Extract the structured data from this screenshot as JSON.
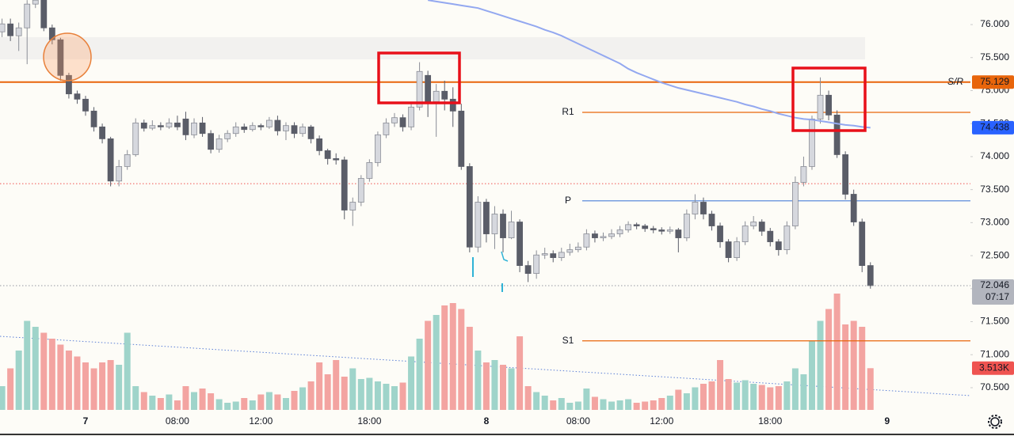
{
  "chart_data": {
    "type": "candlestick",
    "categories": [
      null,
      null,
      null,
      null,
      null,
      null,
      null,
      null,
      null,
      null,
      "7",
      null,
      null,
      null,
      null,
      null,
      null,
      null,
      null,
      null,
      null,
      "08:00",
      null,
      null,
      null,
      null,
      null,
      null,
      null,
      null,
      null,
      "12:00",
      null,
      null,
      null,
      null,
      null,
      null,
      null,
      null,
      null,
      null,
      null,
      null,
      "18:00",
      null,
      null,
      null,
      null,
      null,
      null,
      null,
      null,
      null,
      null,
      null,
      null,
      null,
      "8",
      null,
      null,
      null,
      null,
      null,
      null,
      null,
      null,
      null,
      null,
      "08:00",
      null,
      null,
      null,
      null,
      null,
      null,
      null,
      null,
      null,
      "12:00",
      null,
      null,
      null,
      null,
      null,
      null,
      null,
      null,
      null,
      null,
      null,
      null,
      "18:00",
      null,
      null,
      null,
      null,
      null,
      null,
      null,
      null,
      null,
      null,
      null,
      null,
      null,
      "9"
    ],
    "candles": [
      [
        75.89,
        76.09,
        75.81,
        76.01
      ],
      [
        76.01,
        76.09,
        75.75,
        75.83
      ],
      [
        75.83,
        76.03,
        75.6,
        75.95
      ],
      [
        75.95,
        76.37,
        75.4,
        76.31
      ],
      [
        76.31,
        76.37,
        76.25,
        76.37
      ],
      [
        76.37,
        76.37,
        75.9,
        75.95
      ],
      [
        75.95,
        76.0,
        75.7,
        75.77
      ],
      [
        75.77,
        75.8,
        75.15,
        75.23
      ],
      [
        75.23,
        75.27,
        74.88,
        74.95
      ],
      [
        74.95,
        75.0,
        74.8,
        74.87
      ],
      [
        74.87,
        74.92,
        74.62,
        74.69
      ],
      [
        74.69,
        74.75,
        74.38,
        74.45
      ],
      [
        74.45,
        74.5,
        74.2,
        74.27
      ],
      [
        74.27,
        74.3,
        73.55,
        73.63
      ],
      [
        73.63,
        73.95,
        73.55,
        73.85
      ],
      [
        73.85,
        74.1,
        73.8,
        74.03
      ],
      [
        74.03,
        74.58,
        74.0,
        74.51
      ],
      [
        74.51,
        74.56,
        74.38,
        74.43
      ],
      [
        74.43,
        74.55,
        74.4,
        74.47
      ],
      [
        74.47,
        74.52,
        74.4,
        74.45
      ],
      [
        74.45,
        74.58,
        74.42,
        74.51
      ],
      [
        74.51,
        74.62,
        74.4,
        74.45
      ],
      [
        74.57,
        74.68,
        74.25,
        74.33
      ],
      [
        74.33,
        74.58,
        74.28,
        74.51
      ],
      [
        74.51,
        74.6,
        74.3,
        74.35
      ],
      [
        74.35,
        74.4,
        74.05,
        74.11
      ],
      [
        74.11,
        74.33,
        74.06,
        74.27
      ],
      [
        74.27,
        74.4,
        74.22,
        74.35
      ],
      [
        74.35,
        74.52,
        74.3,
        74.45
      ],
      [
        74.45,
        74.5,
        74.36,
        74.41
      ],
      [
        74.41,
        74.52,
        74.38,
        74.47
      ],
      [
        74.47,
        74.5,
        74.4,
        74.45
      ],
      [
        74.45,
        74.6,
        74.42,
        74.55
      ],
      [
        74.55,
        74.62,
        74.32,
        74.39
      ],
      [
        74.39,
        74.52,
        74.25,
        74.47
      ],
      [
        74.47,
        74.52,
        74.28,
        74.35
      ],
      [
        74.35,
        74.5,
        74.3,
        74.45
      ],
      [
        74.45,
        74.48,
        74.2,
        74.27
      ],
      [
        74.27,
        74.32,
        74.02,
        74.09
      ],
      [
        74.09,
        74.12,
        73.88,
        73.97
      ],
      [
        73.97,
        74.05,
        73.88,
        73.95
      ],
      [
        73.95,
        74.0,
        73.05,
        73.19
      ],
      [
        73.19,
        73.38,
        72.95,
        73.31
      ],
      [
        73.31,
        73.72,
        73.25,
        73.67
      ],
      [
        73.67,
        73.96,
        73.62,
        73.91
      ],
      [
        73.91,
        74.38,
        73.85,
        74.33
      ],
      [
        74.33,
        74.58,
        74.28,
        74.51
      ],
      [
        74.51,
        74.66,
        74.45,
        74.59
      ],
      [
        74.59,
        74.64,
        74.38,
        74.45
      ],
      [
        74.45,
        74.8,
        74.4,
        74.75
      ],
      [
        74.75,
        75.43,
        74.7,
        75.29
      ],
      [
        75.23,
        75.3,
        74.6,
        74.83
      ],
      [
        74.83,
        75.1,
        74.3,
        74.99
      ],
      [
        74.99,
        75.15,
        74.7,
        74.87
      ],
      [
        74.87,
        75.05,
        74.45,
        74.69
      ],
      [
        74.69,
        74.8,
        73.8,
        73.85
      ],
      [
        73.85,
        73.9,
        72.55,
        72.63
      ],
      [
        72.63,
        73.4,
        72.55,
        73.31
      ],
      [
        73.31,
        73.36,
        72.7,
        72.83
      ],
      [
        72.83,
        73.25,
        72.6,
        73.13
      ],
      [
        73.13,
        73.2,
        72.55,
        72.77
      ],
      [
        72.77,
        73.18,
        72.75,
        73.01
      ],
      [
        73.01,
        73.05,
        72.25,
        72.35
      ],
      [
        72.35,
        72.42,
        72.1,
        72.23
      ],
      [
        72.23,
        72.58,
        72.15,
        72.51
      ],
      [
        72.51,
        72.62,
        72.45,
        72.53
      ],
      [
        72.53,
        72.58,
        72.4,
        72.47
      ],
      [
        72.47,
        72.62,
        72.42,
        72.55
      ],
      [
        72.55,
        72.68,
        72.5,
        72.59
      ],
      [
        72.59,
        72.7,
        72.55,
        72.63
      ],
      [
        72.63,
        72.9,
        72.58,
        72.83
      ],
      [
        72.83,
        72.88,
        72.7,
        72.77
      ],
      [
        72.77,
        72.85,
        72.72,
        72.79
      ],
      [
        72.79,
        72.9,
        72.75,
        72.83
      ],
      [
        72.83,
        72.95,
        72.78,
        72.89
      ],
      [
        72.89,
        73.02,
        72.85,
        72.97
      ],
      [
        72.97,
        73.0,
        72.9,
        72.95
      ],
      [
        72.95,
        72.98,
        72.86,
        72.91
      ],
      [
        72.91,
        72.95,
        72.84,
        72.89
      ],
      [
        72.89,
        72.93,
        72.82,
        72.87
      ],
      [
        72.87,
        72.94,
        72.83,
        72.89
      ],
      [
        72.89,
        72.92,
        72.55,
        72.77
      ],
      [
        72.77,
        73.2,
        72.72,
        73.13
      ],
      [
        73.13,
        73.43,
        73.05,
        73.31
      ],
      [
        73.31,
        73.38,
        73.05,
        73.13
      ],
      [
        73.13,
        73.18,
        72.88,
        72.95
      ],
      [
        72.95,
        73.0,
        72.62,
        72.71
      ],
      [
        72.71,
        72.75,
        72.4,
        72.47
      ],
      [
        72.47,
        72.78,
        72.42,
        72.71
      ],
      [
        72.71,
        73.02,
        72.66,
        72.95
      ],
      [
        72.95,
        73.1,
        72.9,
        73.01
      ],
      [
        73.01,
        73.05,
        72.8,
        72.87
      ],
      [
        72.87,
        72.92,
        72.64,
        72.71
      ],
      [
        72.71,
        72.75,
        72.5,
        72.59
      ],
      [
        72.59,
        73.02,
        72.52,
        72.95
      ],
      [
        72.95,
        73.7,
        72.9,
        73.61
      ],
      [
        73.61,
        74.0,
        73.55,
        73.85
      ],
      [
        73.85,
        74.62,
        73.8,
        74.57
      ],
      [
        74.57,
        75.2,
        74.5,
        74.93
      ],
      [
        74.93,
        75.0,
        74.55,
        74.63
      ],
      [
        74.63,
        74.7,
        73.98,
        74.03
      ],
      [
        74.03,
        74.08,
        73.35,
        73.43
      ],
      [
        73.43,
        73.5,
        72.95,
        73.01
      ],
      [
        73.01,
        73.06,
        72.25,
        72.35
      ],
      [
        72.35,
        72.4,
        72.0,
        72.046
      ],
      null,
      null
    ],
    "up_color": "#d6d8de",
    "up_edge": "#8a8d96",
    "down_color": "#5a5d68",
    "ylim": [
      70.164,
      76.372
    ],
    "yticks": [
      {
        "value": 70.5,
        "label": "70.500"
      },
      {
        "value": 71,
        "label": "71.000"
      },
      {
        "value": 71.5,
        "label": "71.500"
      },
      {
        "value": 72,
        "label": "72.000"
      },
      {
        "value": 72.5,
        "label": "72.500"
      },
      {
        "value": 73,
        "label": "73.000"
      },
      {
        "value": 73.5,
        "label": "73.500"
      },
      {
        "value": 74,
        "label": "74.000"
      },
      {
        "value": 74.5,
        "label": "74.500"
      },
      {
        "value": 75,
        "label": "75.000"
      },
      {
        "value": 75.5,
        "label": "75.500"
      },
      {
        "value": 76,
        "label": "76.000"
      }
    ],
    "volume": {
      "values": [
        2000,
        3500,
        5000,
        7500,
        7000,
        6500,
        6000,
        5500,
        5000,
        4500,
        4000,
        3500,
        4000,
        4200,
        3800,
        6500,
        2000,
        1500,
        1200,
        1000,
        1300,
        800,
        2000,
        1500,
        1800,
        1400,
        900,
        600,
        700,
        1000,
        800,
        1300,
        1500,
        1300,
        1000,
        1600,
        1900,
        2400,
        4000,
        3000,
        4200,
        2800,
        3500,
        2600,
        2700,
        2400,
        2200,
        2000,
        2300,
        4500,
        6000,
        7500,
        8000,
        8800,
        9000,
        8500,
        7000,
        5000,
        4000,
        4200,
        3800,
        3500,
        6200,
        2000,
        1500,
        1200,
        800,
        1000,
        600,
        700,
        1800,
        1100,
        900,
        700,
        800,
        900,
        600,
        700,
        800,
        1000,
        1200,
        1700,
        1400,
        1900,
        2200,
        2400,
        4200,
        2600,
        2300,
        2500,
        2200,
        2100,
        1900,
        2000,
        2400,
        3500,
        3000,
        5800,
        7500,
        8500,
        9800,
        7200,
        7500,
        7000,
        3513,
        null,
        null
      ],
      "last_label": "3.513K",
      "ylim": [
        0,
        10000
      ],
      "up_color": "#9fd4ca",
      "down_color": "#f3a4a1",
      "tag_color": "#ef5350"
    },
    "ma": {
      "values": [
        null,
        null,
        null,
        null,
        null,
        null,
        null,
        null,
        null,
        null,
        null,
        null,
        null,
        null,
        null,
        null,
        null,
        null,
        null,
        null,
        null,
        null,
        null,
        null,
        null,
        null,
        null,
        null,
        null,
        null,
        null,
        null,
        null,
        null,
        null,
        null,
        null,
        null,
        null,
        null,
        null,
        null,
        null,
        null,
        null,
        null,
        null,
        null,
        null,
        null,
        null,
        76.37,
        76.35,
        76.33,
        76.31,
        76.29,
        76.27,
        76.25,
        76.21,
        76.17,
        76.13,
        76.09,
        76.05,
        76.01,
        75.97,
        75.92,
        75.88,
        75.83,
        75.77,
        75.71,
        75.65,
        75.59,
        75.53,
        75.47,
        75.41,
        75.33,
        75.27,
        75.22,
        75.17,
        75.12,
        75.08,
        75.04,
        75.01,
        74.98,
        74.95,
        74.92,
        74.89,
        74.86,
        74.83,
        74.79,
        74.76,
        74.72,
        74.69,
        74.65,
        74.62,
        74.59,
        74.57,
        74.56,
        74.54,
        74.52,
        74.5,
        74.48,
        74.47,
        74.45,
        74.438,
        null,
        null
      ],
      "color": "#93a8f0",
      "tag_color": "#2962ff"
    },
    "levels": [
      {
        "name": "S/R",
        "value": 75.129,
        "color": "#e8650b",
        "style": "full"
      },
      {
        "name": "R1",
        "value": 74.67,
        "color": "#e8650b",
        "style": "pivot"
      },
      {
        "name": "P",
        "value": 73.33,
        "color": "#4a7fd8",
        "style": "pivot"
      },
      {
        "name": "S1",
        "value": 71.21,
        "color": "#e8650b",
        "style": "pivot"
      }
    ],
    "alert_lines": [
      73.59
    ],
    "price_tag_color": "#b2b5be",
    "countdown": "07:17"
  }
}
